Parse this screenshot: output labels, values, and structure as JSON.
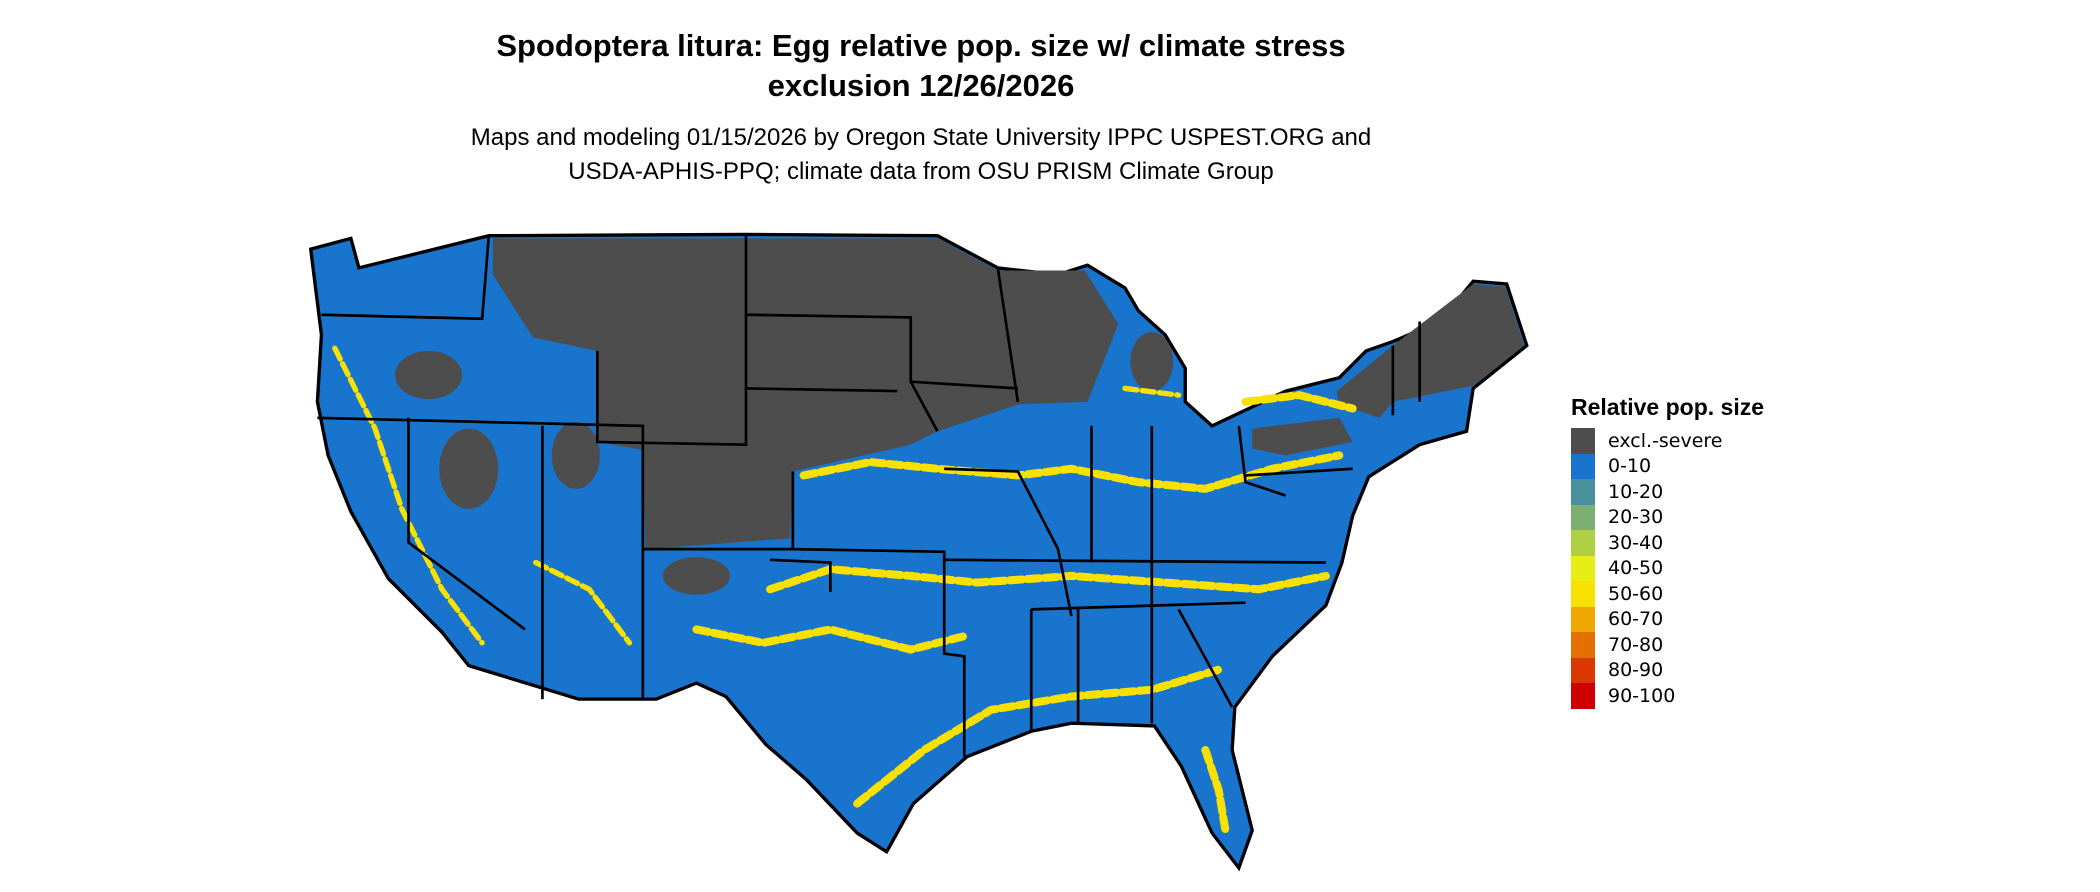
{
  "title_line1": "Spodoptera litura: Egg relative pop. size w/ climate stress",
  "title_line2": "exclusion 12/26/2026",
  "subtitle_line1": "Maps and modeling 01/15/2026 by Oregon State University IPPC USPEST.ORG and",
  "subtitle_line2": "USDA-APHIS-PPQ; climate data from OSU PRISM Climate Group",
  "map": {
    "region": "Contiguous United States",
    "state_borders": true
  },
  "legend": {
    "title": "Relative pop. size",
    "items": [
      {
        "label": "excl.-severe",
        "color": "#4d4d4d"
      },
      {
        "label": "0-10",
        "color": "#1874cd"
      },
      {
        "label": "10-20",
        "color": "#48919c"
      },
      {
        "label": "20-30",
        "color": "#7cb072"
      },
      {
        "label": "30-40",
        "color": "#b0d044"
      },
      {
        "label": "40-50",
        "color": "#e5ef14"
      },
      {
        "label": "50-60",
        "color": "#f8e000"
      },
      {
        "label": "60-70",
        "color": "#eea800"
      },
      {
        "label": "70-80",
        "color": "#e37000"
      },
      {
        "label": "80-90",
        "color": "#da3800"
      },
      {
        "label": "90-100",
        "color": "#cf0000"
      }
    ]
  }
}
